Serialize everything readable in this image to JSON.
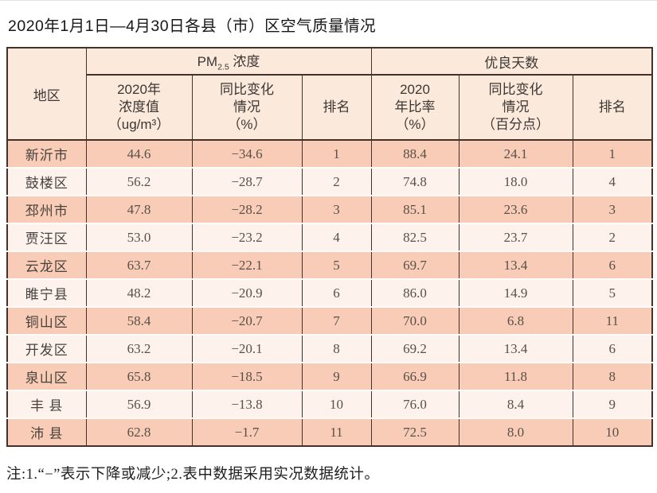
{
  "page": {
    "title": "2020年1月1日—4月30日各县（市）区空气质量情况",
    "note": "注:1.“−”表示下降或减少;2.表中数据采用实况数据统计。"
  },
  "colors": {
    "border_dark": "#46302a",
    "header_bg": "#fbe9dc",
    "row_salmon": "#f8ccb6",
    "row_cream": "#fdf3ec",
    "text_dark": "#161616",
    "cell_text": "#595049"
  },
  "chart_data": {
    "type": "table",
    "title": "2020年1月1日—4月30日各县（市）区空气质量情况",
    "note": "注:1.“−”表示下降或减少;2.表中数据采用实况数据统计。",
    "corner_header": "地区",
    "group_headers": {
      "pm25": {
        "prefix": "PM",
        "sub": "2.5",
        "suffix": " 浓度",
        "span": 3
      },
      "good_days": {
        "label": "优良天数",
        "span": 3
      }
    },
    "columns": [
      "2020年\n浓度值\n（ug/m³）",
      "同比变化\n情况\n（%）",
      "排名",
      "2020\n年比率\n（%）",
      "同比变化\n情况\n（百分点）",
      "排名"
    ],
    "rows": [
      [
        "新沂市",
        "44.6",
        "−34.6",
        "1",
        "88.4",
        "24.1",
        "1"
      ],
      [
        "鼓楼区",
        "56.2",
        "−28.7",
        "2",
        "74.8",
        "18.0",
        "4"
      ],
      [
        "邳州市",
        "47.8",
        "−28.2",
        "3",
        "85.1",
        "23.6",
        "3"
      ],
      [
        "贾汪区",
        "53.0",
        "−23.2",
        "4",
        "82.5",
        "23.7",
        "2"
      ],
      [
        "云龙区",
        "63.7",
        "−22.1",
        "5",
        "69.7",
        "13.4",
        "6"
      ],
      [
        "睢宁县",
        "48.2",
        "−20.9",
        "6",
        "86.0",
        "14.9",
        "5"
      ],
      [
        "铜山区",
        "58.4",
        "−20.7",
        "7",
        "70.0",
        "6.8",
        "11"
      ],
      [
        "开发区",
        "63.2",
        "−20.1",
        "8",
        "69.2",
        "13.4",
        "6"
      ],
      [
        "泉山区",
        "65.8",
        "−18.5",
        "9",
        "66.9",
        "11.8",
        "8"
      ],
      [
        "丰 县",
        "56.9",
        "−13.8",
        "10",
        "76.0",
        "8.4",
        "9"
      ],
      [
        "沛 县",
        "62.8",
        "−1.7",
        "11",
        "72.5",
        "8.0",
        "10"
      ]
    ]
  }
}
